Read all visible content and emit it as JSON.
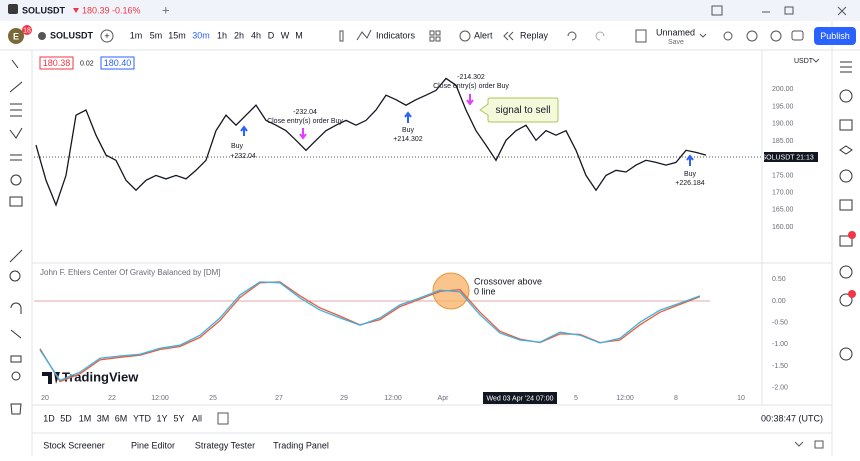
{
  "top_tab": {
    "symbol": "SOLUSDT",
    "price": "180.39",
    "change": "-0.16%"
  },
  "toolbar": {
    "avatar": "E",
    "badge": "18",
    "symbol": "SOLUSDT",
    "intervals": [
      "1m",
      "5m",
      "15m",
      "30m",
      "1h",
      "2h",
      "4h",
      "D",
      "W",
      "M"
    ],
    "indicators": "Indicators",
    "alert": "Alert",
    "replay": "Replay",
    "layout": "Unnamed",
    "save": "Save",
    "publish": "Publish"
  },
  "legend": {
    "sell": "180.38",
    "spread": "0.02",
    "buy": "180.40"
  },
  "price_pane": {
    "currency": "USDT",
    "ylim": [
      150,
      211
    ],
    "yticks": [
      {
        "value": 160,
        "label": "160.00"
      },
      {
        "value": 165,
        "label": "165.00"
      },
      {
        "value": 170,
        "label": "170.00"
      },
      {
        "value": 175,
        "label": "175.00"
      },
      {
        "value": 185,
        "label": "185.00"
      },
      {
        "value": 190,
        "label": "190.00"
      },
      {
        "value": 195,
        "label": "195.00"
      },
      {
        "value": 200,
        "label": "200.00"
      }
    ],
    "last_label": "SOLUSDT",
    "last_time": "21:13",
    "values": [
      183.8,
      173.6,
      166.4,
      175,
      192.5,
      194,
      186.7,
      180.9,
      179.4,
      173.6,
      170.7,
      173.6,
      175,
      174,
      175,
      174,
      176.5,
      179.4,
      188,
      192.5,
      189.6,
      192.5,
      195.4,
      191,
      189.6,
      188,
      185.2,
      182.3,
      185.2,
      188,
      189.6,
      191,
      189.6,
      191,
      194,
      198.3,
      197,
      195.4,
      197,
      198.3,
      199.7,
      203.2,
      201.2,
      194,
      188,
      183.8,
      179.4,
      185.2,
      188,
      189.6,
      185.2,
      188,
      186.7,
      188,
      182.3,
      175,
      170.7,
      175,
      176.5,
      176,
      178,
      179.4,
      178.8,
      178,
      178.8,
      182.3,
      181.7,
      180.9
    ],
    "trades": [
      {
        "side": "Buy",
        "amount": "+232.04"
      },
      {
        "amount": "-232.04",
        "side": "Close entry(s) order Buy"
      },
      {
        "side": "Buy",
        "amount": "+214.302"
      },
      {
        "amount": "-214.302",
        "side": "Close entry(s) order Buy"
      },
      {
        "side": "Buy",
        "amount": "+226.184"
      }
    ],
    "callout": "signal to sell"
  },
  "indicator_pane": {
    "title": "John F. Ehlers Center Of Gravity Balanced by [DM]",
    "ylim": [
      -2.1,
      0.83
    ],
    "yticks": [
      {
        "value": 0.5,
        "label": "0.50"
      },
      {
        "value": 0,
        "label": "0.00"
      },
      {
        "value": -0.5,
        "label": "-0.50"
      },
      {
        "value": -1,
        "label": "-1.00"
      },
      {
        "value": -1.5,
        "label": "-1.50"
      },
      {
        "value": -2,
        "label": "-2.00"
      }
    ],
    "series": [
      {
        "color": "#f05a3c",
        "values": [
          -1.1,
          -1.86,
          -1.68,
          -1.36,
          -1.3,
          -1.25,
          -1.12,
          -1.05,
          -0.84,
          -0.45,
          0.08,
          0.42,
          0.44,
          0.12,
          -0.16,
          -0.35,
          -0.55,
          -0.43,
          -0.13,
          0.04,
          0.22,
          0.26,
          -0.26,
          -0.7,
          -0.88,
          -0.96,
          -0.76,
          -0.77,
          -0.96,
          -0.9,
          -0.55,
          -0.26,
          -0.08,
          0.1
        ]
      },
      {
        "color": "#3bb3e0",
        "values": [
          -1.13,
          -1.83,
          -1.64,
          -1.32,
          -1.27,
          -1.23,
          -1.09,
          -1.02,
          -0.79,
          -0.39,
          0.14,
          0.44,
          0.42,
          0.07,
          -0.21,
          -0.39,
          -0.56,
          -0.39,
          -0.09,
          0.07,
          0.25,
          0.21,
          -0.32,
          -0.74,
          -0.9,
          -0.95,
          -0.72,
          -0.79,
          -0.97,
          -0.86,
          -0.49,
          -0.21,
          -0.05,
          0.12
        ]
      }
    ],
    "annotation": [
      "Crossover above",
      "0 line"
    ],
    "watermark": "TradingView"
  },
  "x_axis": {
    "labels": [
      "20",
      "22",
      "12:00",
      "25",
      "27",
      "29",
      "12:00",
      "Apr",
      "5",
      "12:00",
      "8",
      "10"
    ],
    "cursor": "Wed 03 Apr '24   07:00"
  },
  "timeframes": [
    "1D",
    "5D",
    "1M",
    "3M",
    "6M",
    "YTD",
    "1Y",
    "5Y",
    "All"
  ],
  "clock": "00:38:47 (UTC)",
  "bottom_tabs": [
    "Stock Screener",
    "Pine Editor",
    "Strategy Tester",
    "Trading Panel"
  ]
}
